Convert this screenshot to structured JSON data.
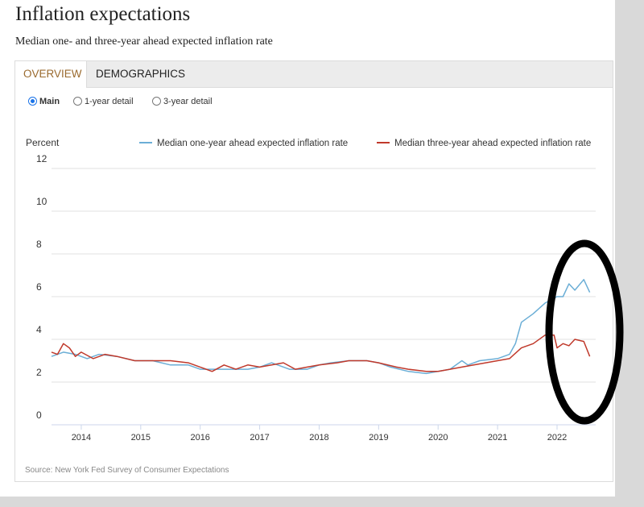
{
  "header": {
    "title": "Inflation expectations",
    "subtitle": "Median one- and three-year ahead expected inflation rate"
  },
  "tabs": [
    {
      "label": "OVERVIEW",
      "active": true
    },
    {
      "label": "DEMOGRAPHICS",
      "active": false
    }
  ],
  "radios": [
    {
      "label": "Main",
      "selected": true
    },
    {
      "label": "1-year detail",
      "selected": false
    },
    {
      "label": "3-year detail",
      "selected": false
    }
  ],
  "source": "Source: New York Fed Survey of Consumer Expectations",
  "chart_data": {
    "type": "line",
    "ylabel": "Percent",
    "ylim": [
      0,
      12
    ],
    "yticks": [
      "0",
      "2",
      "4",
      "6",
      "8",
      "10",
      "12"
    ],
    "xlim": [
      2013.5,
      2022.65
    ],
    "xticks": [
      "2014",
      "2015",
      "2016",
      "2017",
      "2018",
      "2019",
      "2020",
      "2021",
      "2022"
    ],
    "grid": true,
    "legend_position": "top",
    "series": [
      {
        "name": "Median one-year ahead expected inflation rate",
        "color": "#6baed6",
        "points": [
          [
            2013.5,
            3.2
          ],
          [
            2013.7,
            3.4
          ],
          [
            2013.9,
            3.3
          ],
          [
            2014.1,
            3.1
          ],
          [
            2014.3,
            3.3
          ],
          [
            2014.6,
            3.2
          ],
          [
            2014.9,
            3.0
          ],
          [
            2015.2,
            3.0
          ],
          [
            2015.5,
            2.8
          ],
          [
            2015.8,
            2.8
          ],
          [
            2016.0,
            2.6
          ],
          [
            2016.2,
            2.6
          ],
          [
            2016.5,
            2.6
          ],
          [
            2016.8,
            2.6
          ],
          [
            2017.0,
            2.7
          ],
          [
            2017.2,
            2.9
          ],
          [
            2017.5,
            2.6
          ],
          [
            2017.8,
            2.6
          ],
          [
            2018.0,
            2.8
          ],
          [
            2018.2,
            2.9
          ],
          [
            2018.5,
            3.0
          ],
          [
            2018.8,
            3.0
          ],
          [
            2019.0,
            2.9
          ],
          [
            2019.2,
            2.7
          ],
          [
            2019.5,
            2.5
          ],
          [
            2019.8,
            2.4
          ],
          [
            2020.0,
            2.5
          ],
          [
            2020.2,
            2.6
          ],
          [
            2020.4,
            3.0
          ],
          [
            2020.5,
            2.8
          ],
          [
            2020.7,
            3.0
          ],
          [
            2021.0,
            3.1
          ],
          [
            2021.2,
            3.3
          ],
          [
            2021.3,
            3.8
          ],
          [
            2021.4,
            4.8
          ],
          [
            2021.6,
            5.2
          ],
          [
            2021.8,
            5.7
          ],
          [
            2022.0,
            6.0
          ],
          [
            2022.1,
            6.0
          ],
          [
            2022.2,
            6.6
          ],
          [
            2022.3,
            6.3
          ],
          [
            2022.45,
            6.8
          ],
          [
            2022.55,
            6.2
          ]
        ]
      },
      {
        "name": "Median three-year ahead expected inflation rate",
        "color": "#c0392b",
        "points": [
          [
            2013.5,
            3.4
          ],
          [
            2013.6,
            3.3
          ],
          [
            2013.7,
            3.8
          ],
          [
            2013.8,
            3.6
          ],
          [
            2013.9,
            3.2
          ],
          [
            2014.0,
            3.4
          ],
          [
            2014.2,
            3.1
          ],
          [
            2014.4,
            3.3
          ],
          [
            2014.6,
            3.2
          ],
          [
            2014.9,
            3.0
          ],
          [
            2015.2,
            3.0
          ],
          [
            2015.5,
            3.0
          ],
          [
            2015.8,
            2.9
          ],
          [
            2016.0,
            2.7
          ],
          [
            2016.2,
            2.5
          ],
          [
            2016.4,
            2.8
          ],
          [
            2016.6,
            2.6
          ],
          [
            2016.8,
            2.8
          ],
          [
            2017.0,
            2.7
          ],
          [
            2017.2,
            2.8
          ],
          [
            2017.4,
            2.9
          ],
          [
            2017.6,
            2.6
          ],
          [
            2017.8,
            2.7
          ],
          [
            2018.0,
            2.8
          ],
          [
            2018.3,
            2.9
          ],
          [
            2018.5,
            3.0
          ],
          [
            2018.8,
            3.0
          ],
          [
            2019.0,
            2.9
          ],
          [
            2019.3,
            2.7
          ],
          [
            2019.5,
            2.6
          ],
          [
            2019.8,
            2.5
          ],
          [
            2020.0,
            2.5
          ],
          [
            2020.2,
            2.6
          ],
          [
            2020.4,
            2.7
          ],
          [
            2020.6,
            2.8
          ],
          [
            2020.8,
            2.9
          ],
          [
            2021.0,
            3.0
          ],
          [
            2021.2,
            3.1
          ],
          [
            2021.4,
            3.6
          ],
          [
            2021.6,
            3.8
          ],
          [
            2021.8,
            4.2
          ],
          [
            2021.95,
            4.2
          ],
          [
            2022.0,
            3.6
          ],
          [
            2022.1,
            3.8
          ],
          [
            2022.2,
            3.7
          ],
          [
            2022.3,
            4.0
          ],
          [
            2022.45,
            3.9
          ],
          [
            2022.55,
            3.2
          ]
        ]
      }
    ]
  }
}
